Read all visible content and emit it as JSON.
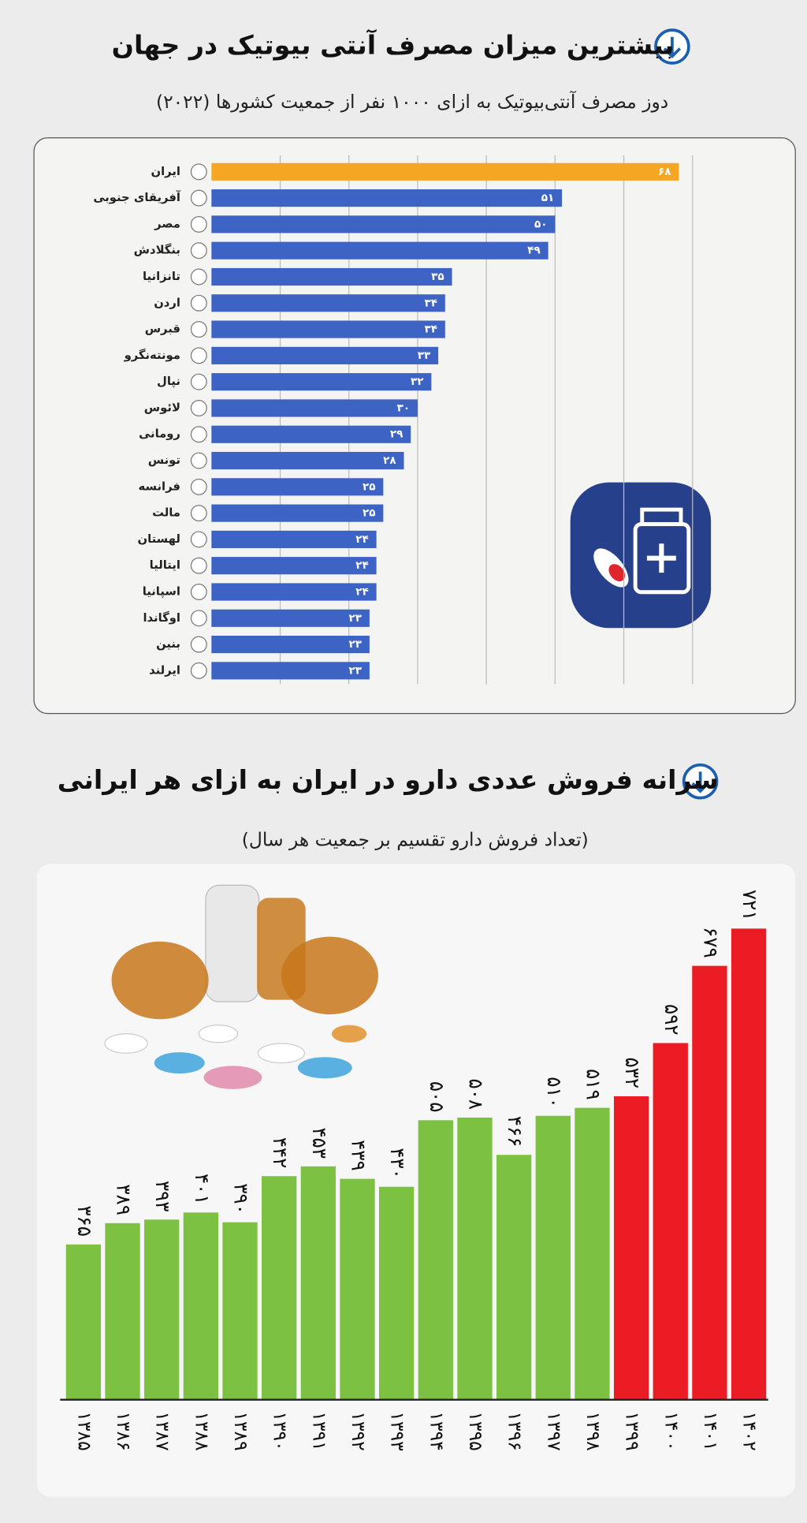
{
  "chart_data": [
    {
      "type": "bar",
      "orientation": "horizontal",
      "title": "بیشترین میزان مصرف آنتی بیوتیک در جهان",
      "subtitle": "دوز مصرف آنتی‌بیوتیک به ازای ۱۰۰۰ نفر از جمعیت کشورها (۲۰۲۲)",
      "categories": [
        "ایران",
        "آفریقای جنوبی",
        "مصر",
        "بنگلادش",
        "تانزانیا",
        "اردن",
        "قبرس",
        "مونته‌نگرو",
        "نپال",
        "لائوس",
        "رومانی",
        "تونس",
        "فرانسه",
        "مالت",
        "لهستان",
        "ایتالیا",
        "اسپانیا",
        "اوگاندا",
        "بنین",
        "ایرلند"
      ],
      "values": [
        68,
        51,
        50,
        49,
        35,
        34,
        34,
        33,
        32,
        30,
        29,
        28,
        25,
        25,
        24,
        24,
        24,
        23,
        23,
        23
      ],
      "value_labels": [
        "۶۸",
        "۵۱",
        "۵۰",
        "۴۹",
        "۳۵",
        "۳۴",
        "۳۴",
        "۳۳",
        "۳۲",
        "۳۰",
        "۲۹",
        "۲۸",
        "۲۵",
        "۲۵",
        "۲۴",
        "۲۴",
        "۲۴",
        "۲۳",
        "۲۳",
        "۲۳"
      ],
      "colors": [
        "#f5a623",
        "#3d63c4",
        "#3d63c4",
        "#3d63c4",
        "#3d63c4",
        "#3d63c4",
        "#3d63c4",
        "#3d63c4",
        "#3d63c4",
        "#3d63c4",
        "#3d63c4",
        "#3d63c4",
        "#3d63c4",
        "#3d63c4",
        "#3d63c4",
        "#3d63c4",
        "#3d63c4",
        "#3d63c4",
        "#3d63c4",
        "#3d63c4"
      ],
      "xlim": [
        0,
        70
      ],
      "xticks": [
        10,
        20,
        30,
        40,
        50,
        60,
        70
      ],
      "grid": true
    },
    {
      "type": "bar",
      "orientation": "vertical",
      "title": "سرانه فروش عددی دارو در ایران به ازای هر ایرانی",
      "subtitle": "(تعداد فروش دارو تقسیم بر جمعیت هر سال)",
      "categories": [
        "۱۳۸۵",
        "۱۳۸۶",
        "۱۳۸۷",
        "۱۳۸۸",
        "۱۳۸۹",
        "۱۳۹۰",
        "۱۳۹۱",
        "۱۳۹۲",
        "۱۳۹۳",
        "۱۳۹۴",
        "۱۳۹۵",
        "۱۳۹۶",
        "۱۳۹۷",
        "۱۳۹۸",
        "۱۳۹۹",
        "۱۴۰۰",
        "۱۴۰۱",
        "۱۴۰۲"
      ],
      "values": [
        365,
        389,
        393,
        401,
        390,
        442,
        453,
        439,
        430,
        505,
        508,
        466,
        510,
        519,
        532,
        592,
        679,
        721
      ],
      "value_labels": [
        "۳۶۵",
        "۳۸۹",
        "۳۹۳",
        "۴۰۱",
        "۳۹۰",
        "۴۴۲",
        "۴۵۳",
        "۴۳۹",
        "۴۳۰",
        "۵۰۵",
        "۵۰۸",
        "۴۶۶",
        "۵۱۰",
        "۵۱۹",
        "۵۳۲",
        "۵۹۲",
        "۶۷۹",
        "۷۲۱"
      ],
      "colors": [
        "#7dc142",
        "#7dc142",
        "#7dc142",
        "#7dc142",
        "#7dc142",
        "#7dc142",
        "#7dc142",
        "#7dc142",
        "#7dc142",
        "#7dc142",
        "#7dc142",
        "#7dc142",
        "#7dc142",
        "#7dc142",
        "#ec1c24",
        "#ec1c24",
        "#ec1c24",
        "#ec1c24"
      ],
      "ylim": [
        190,
        760
      ],
      "grid": false
    }
  ]
}
